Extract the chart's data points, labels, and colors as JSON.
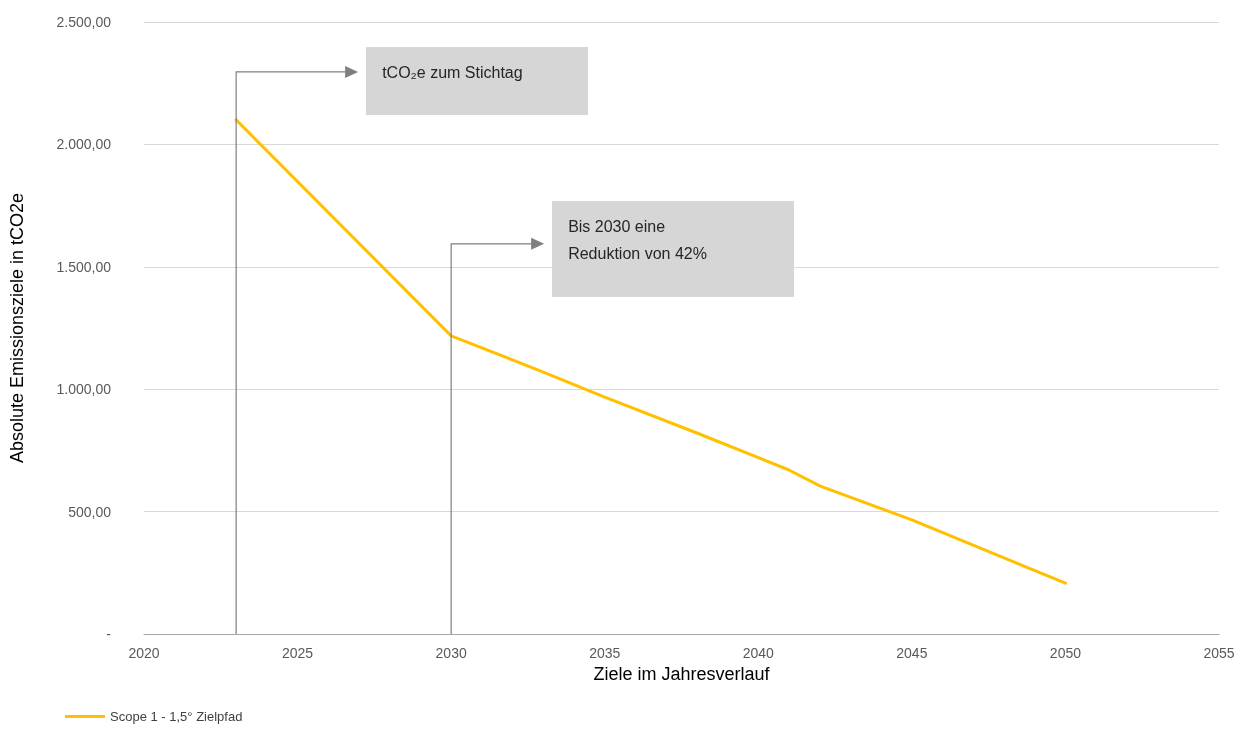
{
  "chart_data": {
    "type": "line",
    "xlabel": "Ziele im Jahresverlauf",
    "ylabel": "Absolute Emissionsziele in tCO2e",
    "xlim": [
      2020,
      2055
    ],
    "xticks": [
      2020,
      2025,
      2030,
      2035,
      2040,
      2045,
      2050,
      2055
    ],
    "ylim": [
      0,
      2500
    ],
    "yticks": [
      {
        "value": 0,
        "label": "-"
      },
      {
        "value": 500,
        "label": "500,00"
      },
      {
        "value": 1000,
        "label": "1.000,00"
      },
      {
        "value": 1500,
        "label": "1.500,00"
      },
      {
        "value": 2000,
        "label": "2.000,00"
      },
      {
        "value": 2500,
        "label": "2.500,00"
      }
    ],
    "series": [
      {
        "name": "Scope 1 - 1,5° Zielpfad",
        "color": "#ffc000",
        "x": [
          2023,
          2030,
          2033,
          2035,
          2038,
          2041,
          2042,
          2045,
          2050
        ],
        "values": [
          2100,
          1218,
          1070,
          968,
          821,
          670,
          605,
          466,
          208
        ]
      }
    ],
    "annotations": [
      "tCO₂e zum Stichtag",
      "Bis 2030 eine\nReduktion von 42%"
    ],
    "grid": "y",
    "legend": "bottom left",
    "marker": "none",
    "line_style": "solid"
  }
}
